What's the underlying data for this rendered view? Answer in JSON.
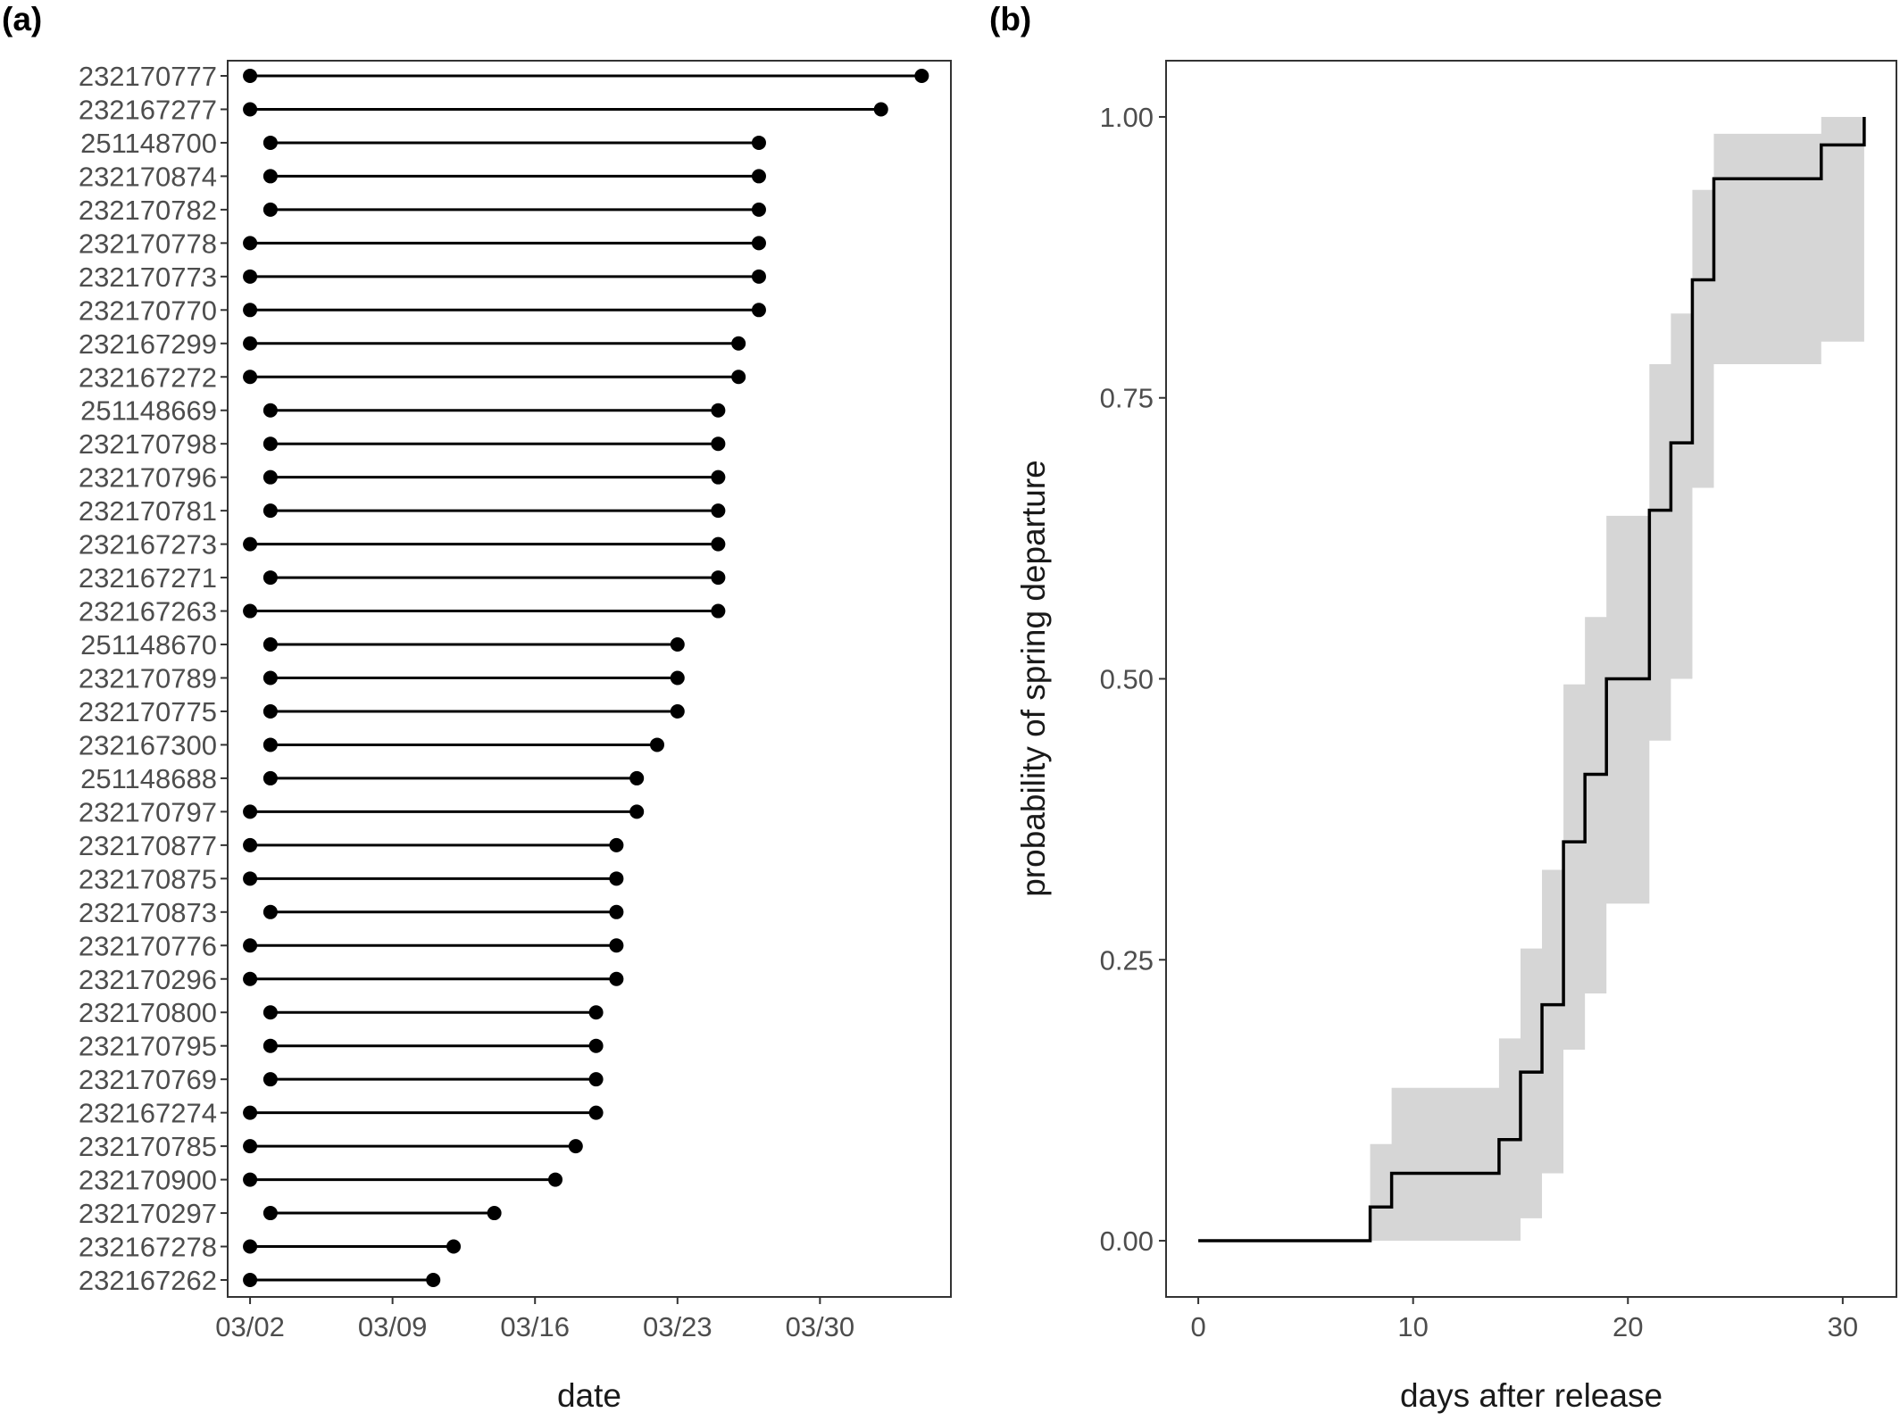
{
  "panel_a": {
    "tag": "(a)",
    "chart_data": {
      "type": "dumbbell",
      "xlabel": "date",
      "ylabel": "",
      "x_ticks": [
        "03/02",
        "03/09",
        "03/16",
        "03/23",
        "03/30"
      ],
      "xlim": [
        "03/01",
        "04/05"
      ],
      "grid": false,
      "legend": "none",
      "rows": [
        {
          "id": "232170777",
          "start": "03/02",
          "end": "04/04"
        },
        {
          "id": "232167277",
          "start": "03/02",
          "end": "04/02"
        },
        {
          "id": "251148700",
          "start": "03/03",
          "end": "03/27"
        },
        {
          "id": "232170874",
          "start": "03/03",
          "end": "03/27"
        },
        {
          "id": "232170782",
          "start": "03/03",
          "end": "03/27"
        },
        {
          "id": "232170778",
          "start": "03/02",
          "end": "03/27"
        },
        {
          "id": "232170773",
          "start": "03/02",
          "end": "03/27"
        },
        {
          "id": "232170770",
          "start": "03/02",
          "end": "03/27"
        },
        {
          "id": "232167299",
          "start": "03/02",
          "end": "03/26"
        },
        {
          "id": "232167272",
          "start": "03/02",
          "end": "03/26"
        },
        {
          "id": "251148669",
          "start": "03/03",
          "end": "03/25"
        },
        {
          "id": "232170798",
          "start": "03/03",
          "end": "03/25"
        },
        {
          "id": "232170796",
          "start": "03/03",
          "end": "03/25"
        },
        {
          "id": "232170781",
          "start": "03/03",
          "end": "03/25"
        },
        {
          "id": "232167273",
          "start": "03/02",
          "end": "03/25"
        },
        {
          "id": "232167271",
          "start": "03/03",
          "end": "03/25"
        },
        {
          "id": "232167263",
          "start": "03/02",
          "end": "03/25"
        },
        {
          "id": "251148670",
          "start": "03/03",
          "end": "03/23"
        },
        {
          "id": "232170789",
          "start": "03/03",
          "end": "03/23"
        },
        {
          "id": "232170775",
          "start": "03/03",
          "end": "03/23"
        },
        {
          "id": "232167300",
          "start": "03/03",
          "end": "03/22"
        },
        {
          "id": "251148688",
          "start": "03/03",
          "end": "03/21"
        },
        {
          "id": "232170797",
          "start": "03/02",
          "end": "03/21"
        },
        {
          "id": "232170877",
          "start": "03/02",
          "end": "03/20"
        },
        {
          "id": "232170875",
          "start": "03/02",
          "end": "03/20"
        },
        {
          "id": "232170873",
          "start": "03/03",
          "end": "03/20"
        },
        {
          "id": "232170776",
          "start": "03/02",
          "end": "03/20"
        },
        {
          "id": "232170296",
          "start": "03/02",
          "end": "03/20"
        },
        {
          "id": "232170800",
          "start": "03/03",
          "end": "03/19"
        },
        {
          "id": "232170795",
          "start": "03/03",
          "end": "03/19"
        },
        {
          "id": "232170769",
          "start": "03/03",
          "end": "03/19"
        },
        {
          "id": "232167274",
          "start": "03/02",
          "end": "03/19"
        },
        {
          "id": "232170785",
          "start": "03/02",
          "end": "03/18"
        },
        {
          "id": "232170900",
          "start": "03/02",
          "end": "03/17"
        },
        {
          "id": "232170297",
          "start": "03/03",
          "end": "03/14"
        },
        {
          "id": "232167278",
          "start": "03/02",
          "end": "03/12"
        },
        {
          "id": "232167262",
          "start": "03/02",
          "end": "03/11"
        }
      ]
    }
  },
  "panel_b": {
    "tag": "(b)",
    "chart_data": {
      "type": "step",
      "xlabel": "days after release",
      "ylabel": "probability of spring departure",
      "xlim": [
        -1.5,
        32.5
      ],
      "ylim": [
        -0.05,
        1.05
      ],
      "x_ticks": [
        0,
        10,
        20,
        30
      ],
      "y_ticks": [
        "0.00",
        "0.25",
        "0.50",
        "0.75",
        "1.00"
      ],
      "grid": false,
      "legend": "none",
      "line_color": "#000000",
      "ribbon_color": "#d6d6d6",
      "steps": [
        {
          "x": 0,
          "y": 0.0,
          "lower": 0.0,
          "upper": 0.0
        },
        {
          "x": 8,
          "y": 0.03,
          "lower": 0.0,
          "upper": 0.086
        },
        {
          "x": 9,
          "y": 0.06,
          "lower": 0.0,
          "upper": 0.136
        },
        {
          "x": 14,
          "y": 0.09,
          "lower": 0.0,
          "upper": 0.18
        },
        {
          "x": 15,
          "y": 0.15,
          "lower": 0.02,
          "upper": 0.26
        },
        {
          "x": 16,
          "y": 0.21,
          "lower": 0.06,
          "upper": 0.33
        },
        {
          "x": 17,
          "y": 0.355,
          "lower": 0.17,
          "upper": 0.495
        },
        {
          "x": 18,
          "y": 0.415,
          "lower": 0.22,
          "upper": 0.555
        },
        {
          "x": 19,
          "y": 0.5,
          "lower": 0.3,
          "upper": 0.645
        },
        {
          "x": 21,
          "y": 0.65,
          "lower": 0.445,
          "upper": 0.78
        },
        {
          "x": 22,
          "y": 0.71,
          "lower": 0.5,
          "upper": 0.825
        },
        {
          "x": 23,
          "y": 0.855,
          "lower": 0.67,
          "upper": 0.935
        },
        {
          "x": 24,
          "y": 0.945,
          "lower": 0.78,
          "upper": 0.985
        },
        {
          "x": 29,
          "y": 0.975,
          "lower": 0.8,
          "upper": 1.0
        },
        {
          "x": 31,
          "y": 1.0,
          "lower": 0.8,
          "upper": 1.0
        }
      ]
    }
  }
}
